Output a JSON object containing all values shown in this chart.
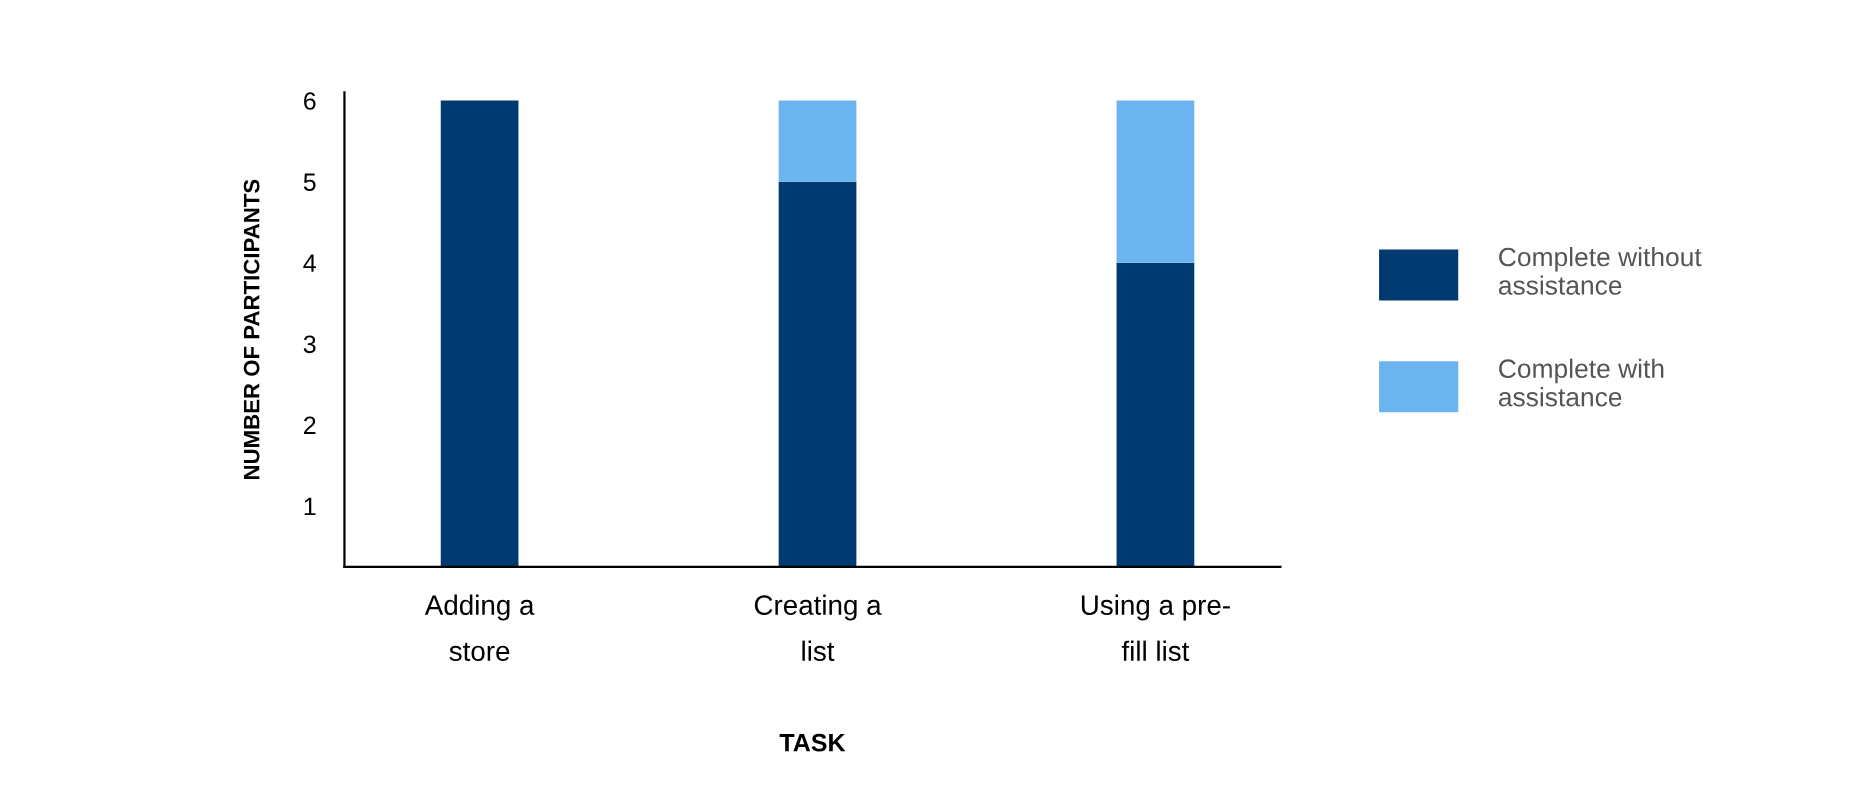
{
  "chart_data": {
    "type": "bar",
    "stacked": true,
    "xlabel": "TASK",
    "ylabel": "NUMBER OF PARTICIPANTS",
    "categories": [
      "Adding a\nstore",
      "Creating a\nlist",
      "Using a pre-\nfill list"
    ],
    "series": [
      {
        "name": "Complete without\nassistance",
        "color": "#003a70",
        "values": [
          6,
          5,
          4
        ]
      },
      {
        "name": "Complete with\nassistance",
        "color": "#6cb4f0",
        "values": [
          null,
          1,
          2
        ]
      }
    ],
    "ylim": [
      0.25,
      6.1
    ],
    "yticks": [
      1,
      2,
      3,
      4,
      5,
      6
    ],
    "grid": false,
    "legend": "right"
  }
}
